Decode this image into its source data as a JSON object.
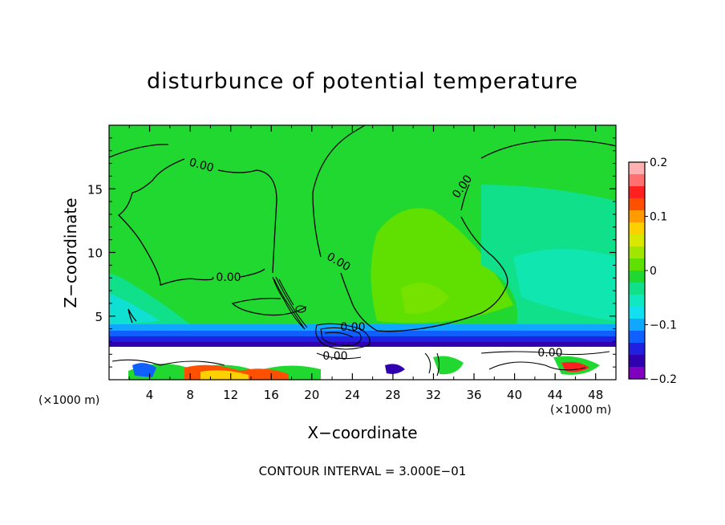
{
  "chart_data": {
    "type": "heatmap",
    "title": "disturbunce of potential temperature",
    "xlabel": "X−coordinate",
    "ylabel": "Z−coordinate",
    "x_unit": "(×1000 m)",
    "z_unit": "(×1000 m)",
    "xlim": [
      0,
      50
    ],
    "ylim": [
      0,
      20
    ],
    "x_ticks": [
      4,
      8,
      12,
      16,
      20,
      24,
      28,
      32,
      36,
      40,
      44,
      48
    ],
    "y_ticks": [
      5,
      10,
      15
    ],
    "colorbar": {
      "ticks": [
        "0.2",
        "0.1",
        "0",
        "−0.1",
        "−0.2"
      ],
      "tick_values": [
        0.2,
        0.1,
        0,
        -0.1,
        -0.2
      ],
      "range": [
        -0.2,
        0.2
      ],
      "colors": [
        "#ffb0b0",
        "#ff7070",
        "#ff2020",
        "#ff5000",
        "#ff9a00",
        "#ffd000",
        "#d8e800",
        "#a0e600",
        "#60e000",
        "#20d830",
        "#10e08a",
        "#10e8c0",
        "#10e0f0",
        "#10a8ff",
        "#1060ff",
        "#2020e0",
        "#3000b0",
        "#8000c0"
      ]
    },
    "contour_labels": [
      "0.00",
      "0.00",
      "0.00",
      "0.00",
      "0.00",
      "0.00",
      "0.00"
    ],
    "contour_interval": "CONTOUR INTERVAL =  3.000E−01"
  }
}
